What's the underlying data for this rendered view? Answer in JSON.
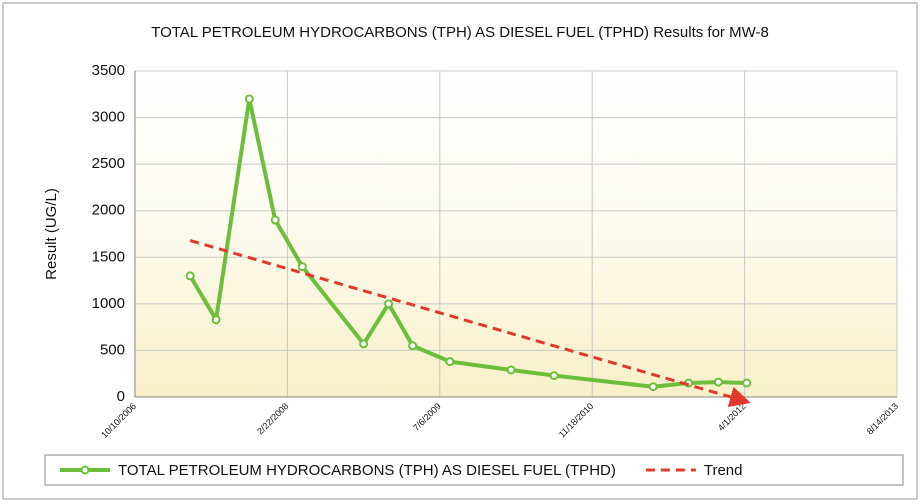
{
  "chart_data": {
    "type": "line",
    "title": "TOTAL PETROLEUM HYDROCARBONS (TPH) AS DIESEL FUEL (TPHD) Results for MW-8",
    "y_label": "Result (UG/L)",
    "x": [
      "2007-04-09",
      "2007-07-03",
      "2007-10-20",
      "2008-01-13",
      "2008-04-11",
      "2008-10-29",
      "2009-01-19",
      "2009-04-08",
      "2009-08-08",
      "2010-02-25",
      "2010-07-16",
      "2011-06-06",
      "2011-09-30",
      "2012-01-06",
      "2012-04-08"
    ],
    "series": [
      {
        "name": "TOTAL PETROLEUM HYDROCARBONS (TPH) AS DIESEL FUEL (TPHD)",
        "color": "#6cbf3a",
        "style": "solid",
        "values": [
          1300,
          830,
          3200,
          1900,
          1400,
          570,
          1000,
          550,
          380,
          290,
          230,
          110,
          150,
          160,
          150
        ]
      },
      {
        "name": "Trend",
        "color": "#e03a2c",
        "style": "dashed",
        "x": [
          "2007-04-09",
          "2012-04-08"
        ],
        "values": [
          1680,
          -50
        ]
      }
    ],
    "xlim": [
      "2006-10-10",
      "2013-08-14"
    ],
    "xticks": [
      {
        "value": "2006-10-10",
        "label": "10/10/2006"
      },
      {
        "value": "2008-02-22",
        "label": "2/22/2008"
      },
      {
        "value": "2009-07-06",
        "label": "7/6/2009"
      },
      {
        "value": "2010-11-18",
        "label": "11/18/2010"
      },
      {
        "value": "2012-04-01",
        "label": "4/1/2012"
      },
      {
        "value": "2013-08-14",
        "label": "8/14/2013"
      }
    ],
    "ylim": [
      0,
      3500
    ],
    "yticks": [
      0,
      500,
      1000,
      1500,
      2000,
      2500,
      3000,
      3500
    ],
    "grid": true,
    "legend": "bottom"
  }
}
